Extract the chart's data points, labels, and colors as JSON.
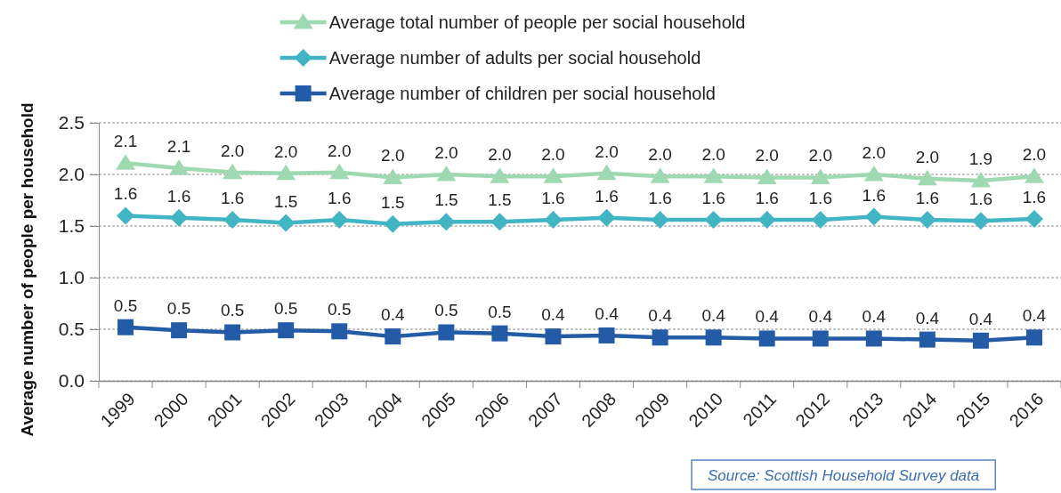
{
  "chart_data": {
    "type": "line",
    "ylabel": "Average number of people per household",
    "annotations": [
      "Source: Scottish Household Survey data"
    ],
    "categories": [
      "1999",
      "2000",
      "2001",
      "2002",
      "2003",
      "2004",
      "2005",
      "2006",
      "2007",
      "2008",
      "2009",
      "2010",
      "2011",
      "2012",
      "2013",
      "2014",
      "2015",
      "2016"
    ],
    "series": [
      {
        "name": "Average total number of people per social household",
        "color": "#9fd9b2",
        "marker": "triangle",
        "values": [
          2.11,
          2.06,
          2.02,
          2.01,
          2.02,
          1.97,
          2.0,
          1.98,
          1.98,
          2.01,
          1.98,
          1.98,
          1.97,
          1.97,
          2.0,
          1.96,
          1.94,
          1.98
        ],
        "value_labels": [
          "2.1",
          "2.1",
          "2.0",
          "2.0",
          "2.0",
          "2.0",
          "2.0",
          "2.0",
          "2.0",
          "2.0",
          "2.0",
          "2.0",
          "2.0",
          "2.0",
          "2.0",
          "2.0",
          "1.9",
          "2.0"
        ]
      },
      {
        "name": "Average number of adults per social household",
        "color": "#41b5c3",
        "marker": "diamond",
        "values": [
          1.6,
          1.58,
          1.56,
          1.53,
          1.56,
          1.52,
          1.54,
          1.54,
          1.56,
          1.58,
          1.56,
          1.56,
          1.56,
          1.56,
          1.59,
          1.56,
          1.55,
          1.57
        ],
        "value_labels": [
          "1.6",
          "1.6",
          "1.6",
          "1.5",
          "1.6",
          "1.5",
          "1.5",
          "1.5",
          "1.6",
          "1.6",
          "1.6",
          "1.6",
          "1.6",
          "1.6",
          "1.6",
          "1.6",
          "1.6",
          "1.6"
        ]
      },
      {
        "name": "Average number of children per social household",
        "color": "#235ba6",
        "marker": "square",
        "values": [
          0.52,
          0.49,
          0.47,
          0.49,
          0.48,
          0.43,
          0.47,
          0.46,
          0.43,
          0.44,
          0.42,
          0.42,
          0.41,
          0.41,
          0.41,
          0.4,
          0.39,
          0.42
        ],
        "value_labels": [
          "0.5",
          "0.5",
          "0.5",
          "0.5",
          "0.5",
          "0.4",
          "0.5",
          "0.5",
          "0.4",
          "0.4",
          "0.4",
          "0.4",
          "0.4",
          "0.4",
          "0.4",
          "0.4",
          "0.4",
          "0.4"
        ]
      }
    ],
    "ylim": [
      0,
      2.5
    ],
    "yticks": [
      {
        "value": 0,
        "label": "0.0"
      },
      {
        "value": 0.5,
        "label": "0.5"
      },
      {
        "value": 1,
        "label": "1.0"
      },
      {
        "value": 1.5,
        "label": "1.5"
      },
      {
        "value": 2,
        "label": "2.0"
      },
      {
        "value": 2.5,
        "label": "2.5"
      }
    ],
    "grid": "y",
    "legend": "top"
  }
}
